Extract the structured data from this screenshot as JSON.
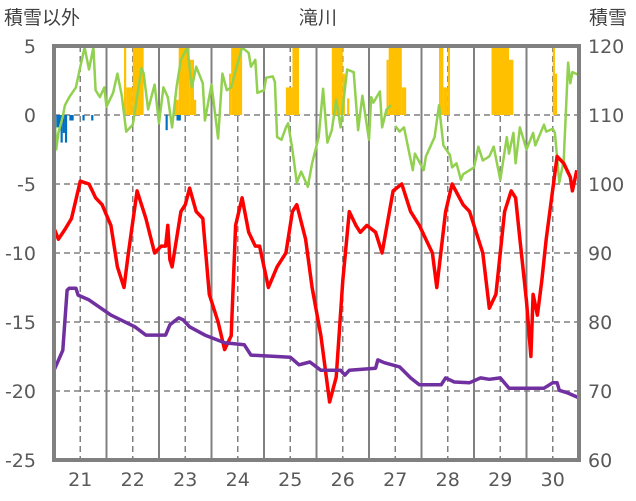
{
  "chart_data": {
    "type": "line",
    "title": "滝川",
    "ylabel_left": "積雪以外",
    "ylabel_right": "積雪",
    "xlim_hours": [
      0,
      240
    ],
    "ylim_left": [
      -25,
      5
    ],
    "ylim_right": [
      60,
      120
    ],
    "left_ticks": [
      "5",
      "0",
      "-5",
      "-10",
      "-15",
      "-20",
      "-25"
    ],
    "left_tick_values": [
      5,
      0,
      -5,
      -10,
      -15,
      -20,
      -25
    ],
    "right_ticks": [
      "120",
      "110",
      "100",
      "90",
      "80",
      "70",
      "60"
    ],
    "right_tick_values": [
      120,
      110,
      100,
      90,
      80,
      70,
      60
    ],
    "x_ticks": [
      "21",
      "22",
      "23",
      "24",
      "25",
      "26",
      "27",
      "28",
      "29",
      "30"
    ],
    "grid": true,
    "colors": {
      "red": "#FF0000",
      "green": "#92D050",
      "purple": "#7030A0",
      "yellow": "#FFC000",
      "blue": "#0070C0",
      "grid": "#808080",
      "text": "#595959"
    },
    "series": {
      "red": {
        "axis": "left",
        "points": [
          [
            0,
            -8.2
          ],
          [
            2,
            -9
          ],
          [
            5,
            -8.3
          ],
          [
            8,
            -7.5
          ],
          [
            12,
            -4.8
          ],
          [
            16,
            -5
          ],
          [
            19,
            -6
          ],
          [
            22,
            -6.5
          ],
          [
            26,
            -8
          ],
          [
            29,
            -11
          ],
          [
            32,
            -12.5
          ],
          [
            34,
            -10
          ],
          [
            38,
            -5.5
          ],
          [
            42,
            -7.5
          ],
          [
            46,
            -10
          ],
          [
            49,
            -9.5
          ],
          [
            51,
            -9.5
          ],
          [
            52,
            -8
          ],
          [
            53,
            -10.5
          ],
          [
            54,
            -11
          ],
          [
            58,
            -7
          ],
          [
            60,
            -6.5
          ],
          [
            62,
            -5.3
          ],
          [
            65,
            -7
          ],
          [
            68,
            -7.5
          ],
          [
            71,
            -13
          ],
          [
            75,
            -15
          ],
          [
            78,
            -17
          ],
          [
            81,
            -16
          ],
          [
            83,
            -8
          ],
          [
            86,
            -6
          ],
          [
            89,
            -8.5
          ],
          [
            92,
            -9.5
          ],
          [
            94,
            -9.5
          ],
          [
            98,
            -12.5
          ],
          [
            102,
            -11
          ],
          [
            106,
            -10
          ],
          [
            109,
            -7
          ],
          [
            111,
            -6.5
          ],
          [
            115,
            -9
          ],
          [
            118,
            -12.5
          ],
          [
            122,
            -16
          ],
          [
            126,
            -20.8
          ],
          [
            129,
            -19
          ],
          [
            132,
            -12
          ],
          [
            135,
            -7
          ],
          [
            138,
            -8
          ],
          [
            140,
            -8.5
          ],
          [
            143,
            -8
          ],
          [
            147,
            -8.5
          ],
          [
            150,
            -10
          ],
          [
            155,
            -5.5
          ],
          [
            159,
            -5
          ],
          [
            163,
            -7
          ],
          [
            167,
            -8
          ],
          [
            173,
            -10
          ],
          [
            175,
            -12.5
          ],
          [
            179,
            -7
          ],
          [
            182,
            -5
          ],
          [
            187,
            -6.5
          ],
          [
            190,
            -7
          ],
          [
            196,
            -10
          ],
          [
            199,
            -14
          ],
          [
            202,
            -13
          ],
          [
            206,
            -7
          ],
          [
            209,
            -5.5
          ],
          [
            211,
            -6
          ],
          [
            213,
            -9
          ],
          [
            216,
            -13.5
          ],
          [
            218,
            -17.5
          ],
          [
            219,
            -13
          ],
          [
            221,
            -14.5
          ],
          [
            223,
            -12
          ],
          [
            225,
            -9
          ],
          [
            230,
            -3
          ],
          [
            233,
            -3.5
          ],
          [
            236,
            -4.5
          ],
          [
            237,
            -5.5
          ],
          [
            239,
            -4
          ]
        ]
      },
      "green": {
        "axis": "left",
        "points": [
          [
            0,
            0.9
          ],
          [
            1,
            -2.5
          ],
          [
            2,
            -1.3
          ],
          [
            4,
            -0.1
          ],
          [
            5,
            0.7
          ],
          [
            7,
            1.3
          ],
          [
            10,
            2
          ],
          [
            12,
            3.5
          ],
          [
            14,
            4.9
          ],
          [
            16,
            3.3
          ],
          [
            18,
            4.9
          ],
          [
            19,
            1.8
          ],
          [
            21,
            1.3
          ],
          [
            23,
            2
          ],
          [
            24,
            0.6
          ],
          [
            27,
            1.6
          ],
          [
            29,
            3
          ],
          [
            31,
            1.4
          ],
          [
            33,
            -1.2
          ],
          [
            36,
            -0.7
          ],
          [
            40,
            3.4
          ],
          [
            41,
            3
          ],
          [
            43,
            0.4
          ],
          [
            46,
            2.2
          ],
          [
            48,
            -0.6
          ],
          [
            50,
            2
          ],
          [
            52,
            1.3
          ],
          [
            54,
            -0.9
          ],
          [
            56,
            2
          ],
          [
            58,
            4
          ],
          [
            61,
            4.9
          ],
          [
            63,
            2
          ],
          [
            65,
            3.5
          ],
          [
            68,
            2.3
          ],
          [
            69,
            -0.4
          ],
          [
            72,
            2.2
          ],
          [
            75,
            -1.7
          ],
          [
            77,
            3
          ],
          [
            79,
            1.8
          ],
          [
            81,
            2
          ],
          [
            84,
            3.8
          ],
          [
            86,
            4.9
          ],
          [
            89,
            4.5
          ],
          [
            90,
            3.5
          ],
          [
            92,
            4
          ],
          [
            93,
            1.6
          ],
          [
            96,
            1.8
          ],
          [
            97,
            2.7
          ],
          [
            100,
            2.8
          ],
          [
            101,
            2.4
          ],
          [
            102,
            -1.6
          ],
          [
            104,
            -1.8
          ],
          [
            106,
            -0.9
          ],
          [
            107,
            -0.6
          ],
          [
            109,
            -2.5
          ],
          [
            111,
            -4.9
          ],
          [
            113,
            -4.1
          ],
          [
            116,
            -5.2
          ],
          [
            118,
            -3.5
          ],
          [
            121,
            -1.6
          ],
          [
            123,
            1.9
          ],
          [
            125,
            -2
          ],
          [
            127,
            -1.1
          ],
          [
            129,
            1.1
          ],
          [
            131,
            -0.9
          ],
          [
            134,
            3.3
          ],
          [
            137,
            3.1
          ],
          [
            139,
            -1.1
          ],
          [
            141,
            1.4
          ],
          [
            144,
            -1.8
          ],
          [
            145,
            1.3
          ],
          [
            146,
            0.9
          ],
          [
            149,
            1.7
          ],
          [
            150,
            -0.9
          ],
          [
            152,
            0.4
          ],
          [
            154,
            0.7
          ],
          null,
          [
            156,
            -0.8
          ],
          [
            158,
            -1.2
          ],
          [
            160,
            -0.9
          ],
          [
            164,
            -4
          ],
          [
            165,
            -2.8
          ],
          [
            169,
            -4
          ],
          [
            170,
            -3
          ],
          [
            172,
            -2.3
          ],
          [
            174,
            -1.6
          ],
          [
            176,
            0.7
          ],
          [
            178,
            -2.2
          ],
          [
            181,
            -2.9
          ],
          [
            182,
            -3.8
          ],
          [
            184,
            -3.5
          ],
          [
            186,
            -4.7
          ],
          [
            187,
            -4.3
          ],
          [
            192,
            -3.8
          ],
          [
            194,
            -2.3
          ],
          [
            196,
            -3.3
          ],
          [
            199,
            -3
          ],
          [
            201,
            -2.3
          ],
          [
            204,
            -4.7
          ],
          [
            207,
            -1.6
          ],
          [
            208,
            -2.8
          ],
          [
            210,
            -1.3
          ],
          [
            211,
            -3.5
          ],
          [
            213,
            -0.9
          ],
          [
            216,
            -2.5
          ],
          [
            219,
            -1.3
          ],
          [
            220,
            -2.2
          ],
          [
            224,
            -0.7
          ],
          [
            225,
            -1.2
          ],
          [
            228,
            -1
          ],
          [
            229,
            -1.3
          ],
          [
            231,
            -4.9
          ],
          [
            233,
            -3.3
          ],
          [
            235,
            3.8
          ],
          [
            236,
            2.3
          ],
          [
            237,
            3.1
          ],
          [
            240,
            2.9
          ]
        ]
      },
      "purple": {
        "axis": "right",
        "points": [
          [
            0,
            73
          ],
          [
            4,
            75.9
          ],
          [
            6,
            84.6
          ],
          [
            7,
            84.9
          ],
          [
            10,
            84.9
          ],
          [
            11,
            83.9
          ],
          [
            16,
            83.2
          ],
          [
            26,
            81
          ],
          [
            37,
            79.3
          ],
          [
            42,
            78.1
          ],
          [
            51,
            78.1
          ],
          [
            53,
            79.6
          ],
          [
            57,
            80.6
          ],
          [
            59,
            80.3
          ],
          [
            62,
            79.3
          ],
          [
            69,
            78.1
          ],
          [
            78,
            77
          ],
          [
            87,
            76.7
          ],
          [
            90,
            75.2
          ],
          [
            108,
            74.9
          ],
          [
            112,
            73.8
          ],
          [
            117,
            74.2
          ],
          [
            122,
            73
          ],
          [
            131,
            73
          ],
          [
            133,
            72.3
          ],
          [
            135,
            73
          ],
          [
            147,
            73.3
          ],
          [
            148,
            74.5
          ],
          [
            151,
            74.1
          ],
          [
            158,
            73.5
          ],
          [
            163,
            71.9
          ],
          [
            167,
            70.9
          ],
          [
            177,
            70.9
          ],
          [
            179,
            71.9
          ],
          [
            183,
            71.3
          ],
          [
            190,
            71.2
          ],
          [
            195,
            71.9
          ],
          [
            199,
            71.7
          ],
          [
            204,
            71.9
          ],
          [
            208,
            70.4
          ],
          [
            224,
            70.4
          ],
          [
            228,
            71.2
          ],
          [
            230,
            71.2
          ],
          [
            231,
            70.1
          ],
          [
            235,
            69.7
          ],
          [
            240,
            69
          ]
        ]
      },
      "yellow": {
        "axis": "left",
        "bars": [
          [
            32,
            33,
            5
          ],
          [
            33,
            36,
            2
          ],
          [
            36,
            41,
            5
          ],
          [
            55,
            57,
            1.1
          ],
          [
            57,
            62,
            5
          ],
          [
            62,
            64,
            4
          ],
          [
            64,
            65,
            1.1
          ],
          [
            80,
            81,
            3
          ],
          [
            81,
            86,
            5
          ],
          [
            106,
            109,
            2
          ],
          [
            109,
            112,
            5
          ],
          [
            127,
            132,
            5
          ],
          [
            132,
            133,
            3
          ],
          [
            134,
            135,
            1.2
          ],
          [
            152,
            153,
            4
          ],
          [
            153,
            159,
            5
          ],
          [
            159,
            161,
            2
          ],
          [
            176,
            178,
            5
          ],
          [
            178,
            180,
            2
          ],
          [
            180,
            181,
            5
          ],
          [
            200,
            208,
            5
          ],
          [
            208,
            210,
            4
          ],
          [
            228,
            229,
            5
          ],
          [
            229,
            230,
            3
          ]
        ]
      },
      "blue": {
        "axis": "left",
        "bars": [
          [
            1,
            3,
            -0.9
          ],
          [
            3,
            4,
            -2
          ],
          [
            4,
            5,
            -1.3
          ],
          [
            5,
            6,
            -2
          ],
          [
            7,
            9,
            -0.4
          ],
          [
            13,
            14,
            -0.4
          ],
          [
            17,
            18,
            -0.4
          ],
          [
            51,
            52,
            -1.1
          ],
          [
            56,
            58,
            -0.4
          ]
        ]
      }
    }
  }
}
